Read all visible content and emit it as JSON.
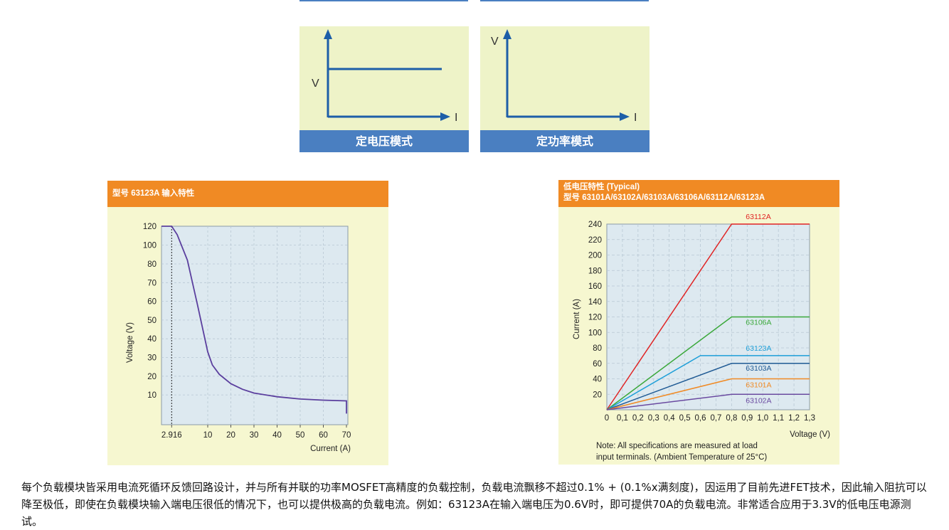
{
  "modes": [
    {
      "axis_y": "V",
      "axis_x": "I",
      "label": "定电压模式"
    },
    {
      "axis_y": "V",
      "axis_x": "I",
      "label": "定功率模式"
    }
  ],
  "chart_data": [
    {
      "type": "line",
      "title": "型号 63123A 输入特性",
      "xlabel": "Current (A)",
      "ylabel": "Voltage (V)",
      "x_ticks": [
        "2.916",
        "10",
        "20",
        "30",
        "40",
        "50",
        "60",
        "70"
      ],
      "y_ticks": [
        "120",
        "100",
        "80",
        "70",
        "60",
        "50",
        "40",
        "30",
        "20",
        "10"
      ],
      "annotations": [
        {
          "text": "2.916",
          "note": "dotted reference line"
        }
      ],
      "series": [
        {
          "points": [
            [
              0,
              120
            ],
            [
              2.916,
              120
            ],
            [
              4,
              111
            ],
            [
              6,
              84
            ],
            [
              8,
              58
            ],
            [
              10,
              33
            ],
            [
              12,
              26
            ],
            [
              15,
              21
            ],
            [
              20,
              16
            ],
            [
              25,
              13
            ],
            [
              30,
              11
            ],
            [
              40,
              9
            ],
            [
              50,
              7.8
            ],
            [
              60,
              7.2
            ],
            [
              70,
              6.8
            ],
            [
              70,
              0
            ]
          ]
        }
      ],
      "xlim": [
        0,
        70
      ],
      "ylim": [
        0,
        120
      ],
      "grid": true
    },
    {
      "type": "line",
      "title": "低电压特性 (Typical)",
      "subtitle": "型号 63101A/63102A/63103A/63106A/63112A/63123A",
      "xlabel": "Voltage (V)",
      "ylabel": "Current (A)",
      "x_ticks": [
        "0",
        "0,1",
        "0,2",
        "0,3",
        "0,4",
        "0,5",
        "0,6",
        "0,7",
        "0,8",
        "0,9",
        "1,0",
        "1,1",
        "1,2",
        "1,3"
      ],
      "y_ticks": [
        "240",
        "220",
        "200",
        "180",
        "160",
        "140",
        "120",
        "100",
        "80",
        "60",
        "40",
        "20"
      ],
      "xlim": [
        0,
        1.3
      ],
      "ylim": [
        0,
        240
      ],
      "grid": true,
      "note": "Note: All specifications are measured at load input terminals. (Ambient Temperature of 25°C)",
      "series": [
        {
          "name": "63112A",
          "color": "#e02424",
          "points": [
            [
              0,
              0
            ],
            [
              0.8,
              240
            ],
            [
              1.3,
              240
            ]
          ]
        },
        {
          "name": "63106A",
          "color": "#3aa83a",
          "points": [
            [
              0,
              0
            ],
            [
              0.8,
              120
            ],
            [
              1.3,
              120
            ]
          ]
        },
        {
          "name": "63123A",
          "color": "#1e9fd8",
          "points": [
            [
              0,
              0
            ],
            [
              0.6,
              70
            ],
            [
              1.3,
              70
            ]
          ]
        },
        {
          "name": "63103A",
          "color": "#1f5a94",
          "points": [
            [
              0,
              0
            ],
            [
              0.8,
              60
            ],
            [
              1.3,
              60
            ]
          ]
        },
        {
          "name": "63101A",
          "color": "#f08a24",
          "points": [
            [
              0,
              0
            ],
            [
              0.8,
              40
            ],
            [
              1.3,
              40
            ]
          ]
        },
        {
          "name": "63102A",
          "color": "#6a4aa0",
          "points": [
            [
              0,
              0
            ],
            [
              0.8,
              20
            ],
            [
              1.3,
              20
            ]
          ]
        }
      ]
    }
  ],
  "description": "每个负载模块皆采用电流死循环反馈回路设计，并与所有并联的功率MOSFET高精度的负载控制，负载电流飘移不超过0.1% + (0.1%x满刻度)，因运用了目前先进FET技术，因此输入阻抗可以降至极低，即使在负载模块输入端电压很低的情况下，也可以提供极高的负载电流。例如：63123A在输入端电压为0.6V时，即可提供70A的负载电流。非常适合应用于3.3V的低电压电源测试。"
}
